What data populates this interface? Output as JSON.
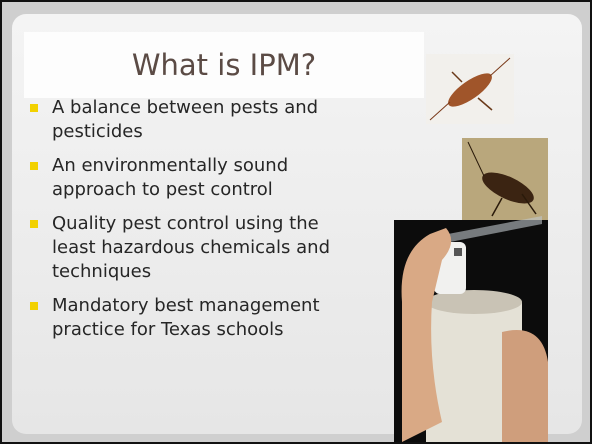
{
  "slide": {
    "title": "What is IPM?",
    "bullets": [
      [
        "A balance between pests and",
        "pesticides"
      ],
      [
        "An environmentally sound",
        "approach to pest control"
      ],
      [
        "Quality pest control using the",
        "least hazardous chemicals and",
        "techniques"
      ],
      [
        "Mandatory best management",
        "practice for Texas schools"
      ]
    ]
  }
}
